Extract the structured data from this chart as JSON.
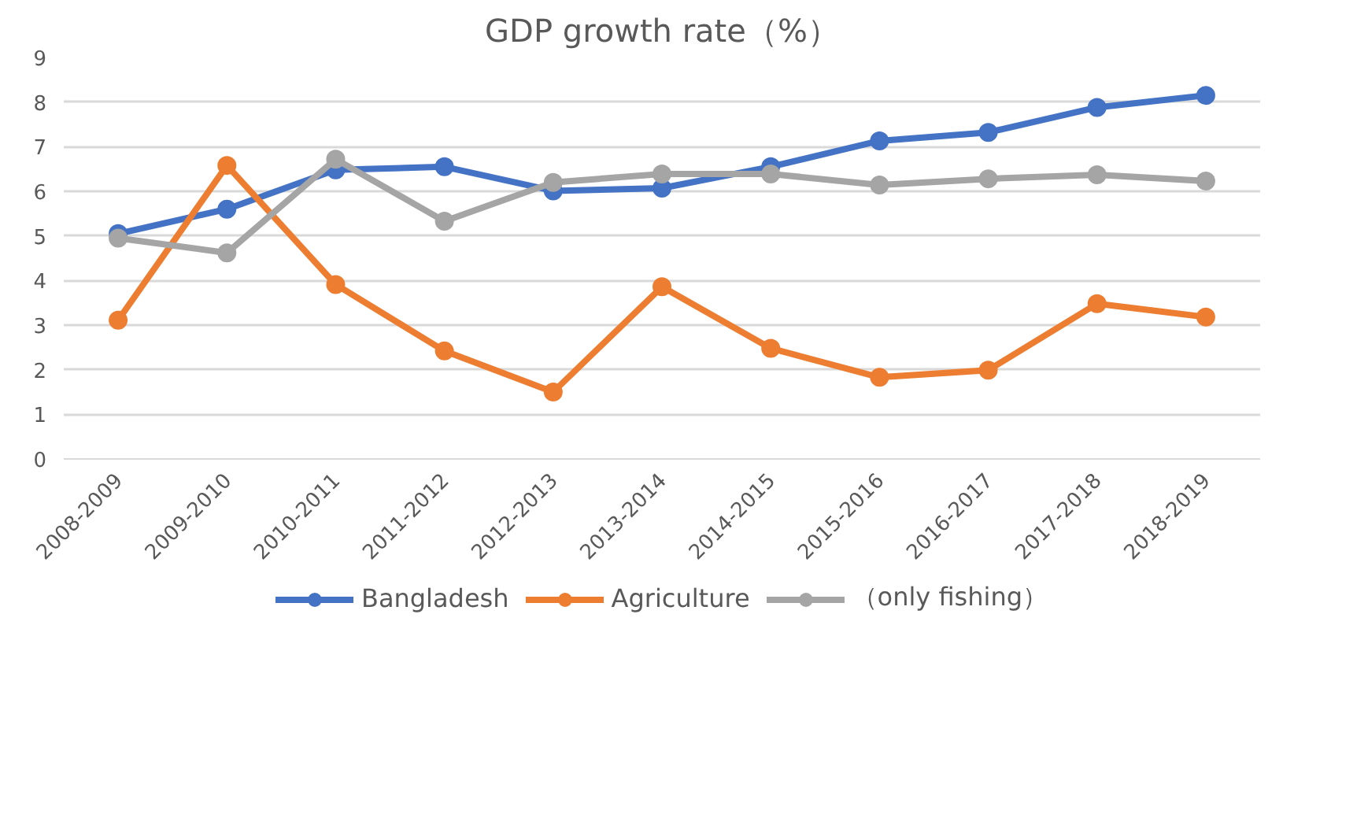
{
  "chart_data": {
    "type": "line",
    "title": "GDP growth rate（%）",
    "categories": [
      "2008-2009",
      "2009-2010",
      "2010-2011",
      "2011-2012",
      "2012-2013",
      "2013-2014",
      "2014-2015",
      "2015-2016",
      "2016-2017",
      "2017-2018",
      "2018-2019"
    ],
    "series": [
      {
        "name": "Bangladesh",
        "color": "#4472c4",
        "values": [
          5.05,
          5.6,
          6.48,
          6.55,
          6.01,
          6.07,
          6.55,
          7.13,
          7.32,
          7.88,
          8.15
        ]
      },
      {
        "name": "Agriculture",
        "color": "#ed7d31",
        "values": [
          3.11,
          6.58,
          3.91,
          2.42,
          1.5,
          3.86,
          2.48,
          1.83,
          1.99,
          3.48,
          3.18
        ]
      },
      {
        "name": "（only fishing）",
        "color": "#a5a5a5",
        "values": [
          4.95,
          4.62,
          6.72,
          5.33,
          6.2,
          6.39,
          6.39,
          6.14,
          6.28,
          6.37,
          6.23
        ]
      }
    ],
    "ylim": [
      0,
      9
    ],
    "yticks": [
      0,
      1,
      2,
      3,
      4,
      5,
      6,
      7,
      8,
      9
    ],
    "grid": "y",
    "legend": "bottom",
    "marker": "circle",
    "line_style": "solid"
  }
}
